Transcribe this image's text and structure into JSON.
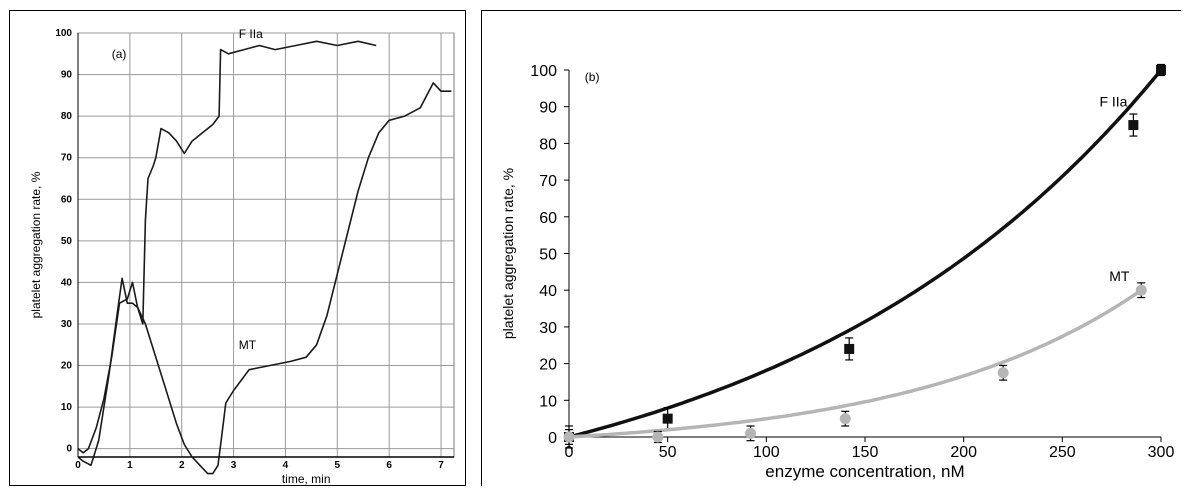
{
  "chart_data": [
    {
      "type": "line",
      "panel_label": "(a)",
      "xlabel": "time, min",
      "ylabel": "platelet aggregation rate, %",
      "xlim": [
        0,
        7.25
      ],
      "ylim": [
        -2,
        100
      ],
      "x_ticks": [
        0,
        1,
        2,
        3,
        4,
        5,
        6,
        7
      ],
      "y_ticks": [
        0,
        10,
        20,
        30,
        40,
        50,
        60,
        70,
        80,
        90,
        100
      ],
      "grid": true,
      "series": [
        {
          "name": "F IIa",
          "x": [
            0,
            0.1,
            0.2,
            0.35,
            0.5,
            0.65,
            0.8,
            0.95,
            1.05,
            1.15,
            1.25,
            1.3,
            1.35,
            1.45,
            1.5,
            1.6,
            1.75,
            1.9,
            2.05,
            2.2,
            2.4,
            2.6,
            2.72,
            2.75,
            2.9,
            3.2,
            3.5,
            3.8,
            4.2,
            4.6,
            5.0,
            5.4,
            5.75
          ],
          "y": [
            0,
            -1,
            0,
            5,
            12,
            22,
            35,
            36,
            40,
            34,
            30,
            55,
            65,
            68,
            70,
            77,
            76,
            74,
            71,
            74,
            76,
            78,
            80,
            96,
            95,
            96,
            97,
            96,
            97,
            98,
            97,
            98,
            97
          ]
        },
        {
          "name": "MT",
          "x": [
            0,
            0.1,
            0.25,
            0.4,
            0.6,
            0.75,
            0.85,
            0.95,
            1.05,
            1.15,
            1.3,
            1.5,
            1.7,
            1.9,
            2.05,
            2.2,
            2.35,
            2.5,
            2.6,
            2.7,
            2.78,
            2.85,
            3.0,
            3.3,
            3.7,
            4.1,
            4.4,
            4.6,
            4.8,
            5.0,
            5.2,
            5.4,
            5.6,
            5.8,
            6.0,
            6.3,
            6.6,
            6.85,
            7.0,
            7.2
          ],
          "y": [
            -2,
            -3,
            -4,
            2,
            18,
            32,
            41,
            35,
            35,
            34,
            30,
            22,
            14,
            6,
            1,
            -2,
            -4,
            -6,
            -6,
            -4,
            4,
            11,
            14,
            19,
            20,
            21,
            22,
            25,
            32,
            42,
            52,
            62,
            70,
            76,
            79,
            80,
            82,
            88,
            86,
            86
          ]
        }
      ],
      "annotations": [
        "F IIa",
        "MT"
      ]
    },
    {
      "type": "scatter",
      "panel_label": "(b)",
      "xlabel": "enzyme concentration, nM",
      "ylabel": "platelet aggregation rate, %",
      "xlim": [
        0,
        300
      ],
      "ylim": [
        0,
        100
      ],
      "x_ticks": [
        0,
        50,
        100,
        150,
        200,
        250,
        300
      ],
      "y_ticks": [
        0,
        10,
        20,
        30,
        40,
        50,
        60,
        70,
        80,
        90,
        100
      ],
      "grid": false,
      "series": [
        {
          "name": "F IIa",
          "color": "#111111",
          "marker": "square",
          "x": [
            0,
            50,
            142,
            286,
            300
          ],
          "y": [
            0,
            5,
            24,
            85,
            100
          ],
          "error": [
            3,
            3,
            3,
            3,
            1.5
          ],
          "fit": "exponential"
        },
        {
          "name": "MT",
          "color": "#b5b5b5",
          "marker": "circle",
          "x": [
            0,
            45,
            92,
            140,
            220,
            290
          ],
          "y": [
            0,
            0,
            1,
            5,
            17.5,
            40
          ],
          "error": [
            2,
            1.5,
            2,
            2,
            2,
            2
          ],
          "fit": "exponential"
        }
      ],
      "annotations": [
        "F IIa",
        "MT"
      ]
    }
  ]
}
